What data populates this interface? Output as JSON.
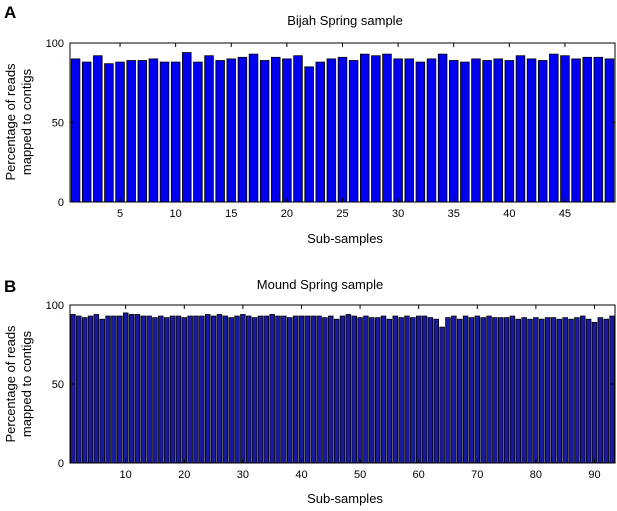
{
  "chart_data": [
    {
      "type": "bar",
      "panel": "A",
      "title": "Bijah Spring sample",
      "xlabel": "Sub-samples",
      "ylabel": [
        "Percentage of reads",
        "mapped to contigs"
      ],
      "xlim": [
        0.5,
        49.5
      ],
      "ylim": [
        0,
        100
      ],
      "xticks": [
        5,
        10,
        15,
        20,
        25,
        30,
        35,
        40,
        45
      ],
      "yticks": [
        0,
        50,
        100
      ],
      "bar_color": "#0000ee",
      "x": [
        1,
        2,
        3,
        4,
        5,
        6,
        7,
        8,
        9,
        10,
        11,
        12,
        13,
        14,
        15,
        16,
        17,
        18,
        19,
        20,
        21,
        22,
        23,
        24,
        25,
        26,
        27,
        28,
        29,
        30,
        31,
        32,
        33,
        34,
        35,
        36,
        37,
        38,
        39,
        40,
        41,
        42,
        43,
        44,
        45,
        46,
        47,
        48,
        49
      ],
      "values": [
        90,
        88,
        92,
        87,
        88,
        89,
        89,
        90,
        88,
        88,
        94,
        88,
        92,
        89,
        90,
        91,
        93,
        89,
        91,
        90,
        92,
        85,
        88,
        90,
        91,
        89,
        93,
        92,
        93,
        90,
        90,
        88,
        90,
        93,
        89,
        88,
        90,
        89,
        90,
        89,
        92,
        90,
        89,
        93,
        92,
        90,
        91,
        91,
        90
      ]
    },
    {
      "type": "bar",
      "panel": "B",
      "title": "Mound Spring sample",
      "xlabel": "Sub-samples",
      "ylabel": [
        "Percentage of reads",
        "mapped to contigs"
      ],
      "xlim": [
        0.5,
        93.5
      ],
      "ylim": [
        0,
        100
      ],
      "xticks": [
        10,
        20,
        30,
        40,
        50,
        60,
        70,
        80,
        90
      ],
      "yticks": [
        0,
        50,
        100
      ],
      "bar_color": "#1a1aa0",
      "x": [
        1,
        2,
        3,
        4,
        5,
        6,
        7,
        8,
        9,
        10,
        11,
        12,
        13,
        14,
        15,
        16,
        17,
        18,
        19,
        20,
        21,
        22,
        23,
        24,
        25,
        26,
        27,
        28,
        29,
        30,
        31,
        32,
        33,
        34,
        35,
        36,
        37,
        38,
        39,
        40,
        41,
        42,
        43,
        44,
        45,
        46,
        47,
        48,
        49,
        50,
        51,
        52,
        53,
        54,
        55,
        56,
        57,
        58,
        59,
        60,
        61,
        62,
        63,
        64,
        65,
        66,
        67,
        68,
        69,
        70,
        71,
        72,
        73,
        74,
        75,
        76,
        77,
        78,
        79,
        80,
        81,
        82,
        83,
        84,
        85,
        86,
        87,
        88,
        89,
        90,
        91,
        92,
        93
      ],
      "values": [
        94,
        93,
        92,
        93,
        94,
        91,
        93,
        93,
        93,
        95,
        94,
        94,
        93,
        93,
        92,
        93,
        92,
        93,
        93,
        92,
        93,
        93,
        93,
        94,
        93,
        94,
        93,
        92,
        93,
        94,
        93,
        92,
        93,
        93,
        94,
        93,
        93,
        92,
        93,
        93,
        93,
        93,
        93,
        92,
        93,
        91,
        93,
        94,
        93,
        92,
        93,
        92,
        92,
        93,
        91,
        93,
        92,
        93,
        92,
        93,
        93,
        92,
        91,
        86,
        92,
        93,
        91,
        93,
        92,
        93,
        92,
        93,
        92,
        92,
        92,
        93,
        91,
        92,
        91,
        92,
        91,
        92,
        92,
        91,
        92,
        91,
        92,
        93,
        91,
        89,
        92,
        91,
        93
      ]
    }
  ]
}
